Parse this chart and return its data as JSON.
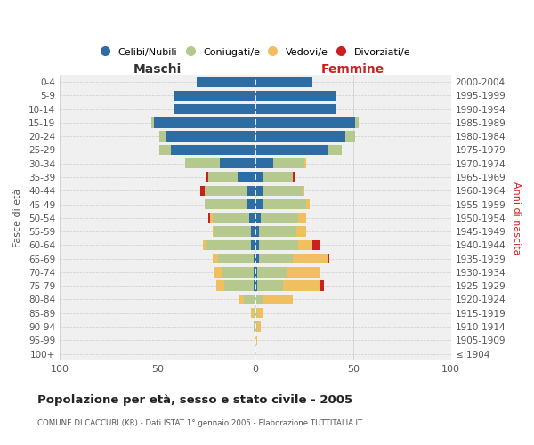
{
  "age_groups": [
    "100+",
    "95-99",
    "90-94",
    "85-89",
    "80-84",
    "75-79",
    "70-74",
    "65-69",
    "60-64",
    "55-59",
    "50-54",
    "45-49",
    "40-44",
    "35-39",
    "30-34",
    "25-29",
    "20-24",
    "15-19",
    "10-14",
    "5-9",
    "0-4"
  ],
  "birth_years": [
    "≤ 1904",
    "1905-1909",
    "1910-1914",
    "1915-1919",
    "1920-1924",
    "1925-1929",
    "1930-1934",
    "1935-1939",
    "1940-1944",
    "1945-1949",
    "1950-1954",
    "1955-1959",
    "1960-1964",
    "1965-1969",
    "1970-1974",
    "1975-1979",
    "1980-1984",
    "1985-1989",
    "1990-1994",
    "1995-1999",
    "2000-2004"
  ],
  "maschi": {
    "celibi": [
      0,
      0,
      0,
      0,
      0,
      1,
      1,
      1,
      2,
      2,
      3,
      4,
      4,
      9,
      18,
      43,
      46,
      52,
      42,
      42,
      30
    ],
    "coniugati": [
      0,
      0,
      1,
      1,
      6,
      15,
      16,
      18,
      23,
      19,
      19,
      22,
      22,
      15,
      18,
      6,
      3,
      1,
      0,
      0,
      0
    ],
    "vedovi": [
      0,
      0,
      0,
      1,
      2,
      4,
      4,
      3,
      2,
      1,
      1,
      0,
      0,
      0,
      0,
      0,
      0,
      0,
      0,
      0,
      0
    ],
    "divorziati": [
      0,
      0,
      0,
      0,
      0,
      0,
      0,
      0,
      0,
      0,
      1,
      0,
      2,
      1,
      0,
      0,
      0,
      0,
      0,
      0,
      0
    ]
  },
  "femmine": {
    "nubili": [
      0,
      0,
      0,
      0,
      0,
      1,
      1,
      2,
      2,
      2,
      3,
      4,
      4,
      4,
      9,
      37,
      46,
      51,
      41,
      41,
      29
    ],
    "coniugate": [
      0,
      0,
      1,
      1,
      4,
      13,
      15,
      17,
      20,
      19,
      19,
      22,
      20,
      15,
      16,
      7,
      5,
      2,
      0,
      0,
      0
    ],
    "vedove": [
      0,
      1,
      2,
      3,
      15,
      19,
      17,
      18,
      7,
      5,
      4,
      2,
      1,
      0,
      1,
      0,
      0,
      0,
      0,
      0,
      0
    ],
    "divorziate": [
      0,
      0,
      0,
      0,
      0,
      2,
      0,
      1,
      4,
      0,
      0,
      0,
      0,
      1,
      0,
      0,
      0,
      0,
      0,
      0,
      0
    ]
  },
  "colors": {
    "celibi_nubili": "#2e6da4",
    "coniugati": "#b5c98e",
    "vedovi": "#f0c060",
    "divorziati": "#cc2020"
  },
  "title": "Popolazione per età, sesso e stato civile - 2005",
  "subtitle": "COMUNE DI CACCURI (KR) - Dati ISTAT 1° gennaio 2005 - Elaborazione TUTTITALIA.IT",
  "xlabel_left": "Maschi",
  "xlabel_right": "Femmine",
  "ylabel_left": "Fasce di età",
  "ylabel_right": "Anni di nascita",
  "xlim": 100,
  "background_color": "#ffffff",
  "plot_bg_color": "#f0f0f0",
  "grid_color": "#cccccc",
  "legend_labels": [
    "Celibi/Nubili",
    "Coniugati/e",
    "Vedovi/e",
    "Divorziati/e"
  ]
}
